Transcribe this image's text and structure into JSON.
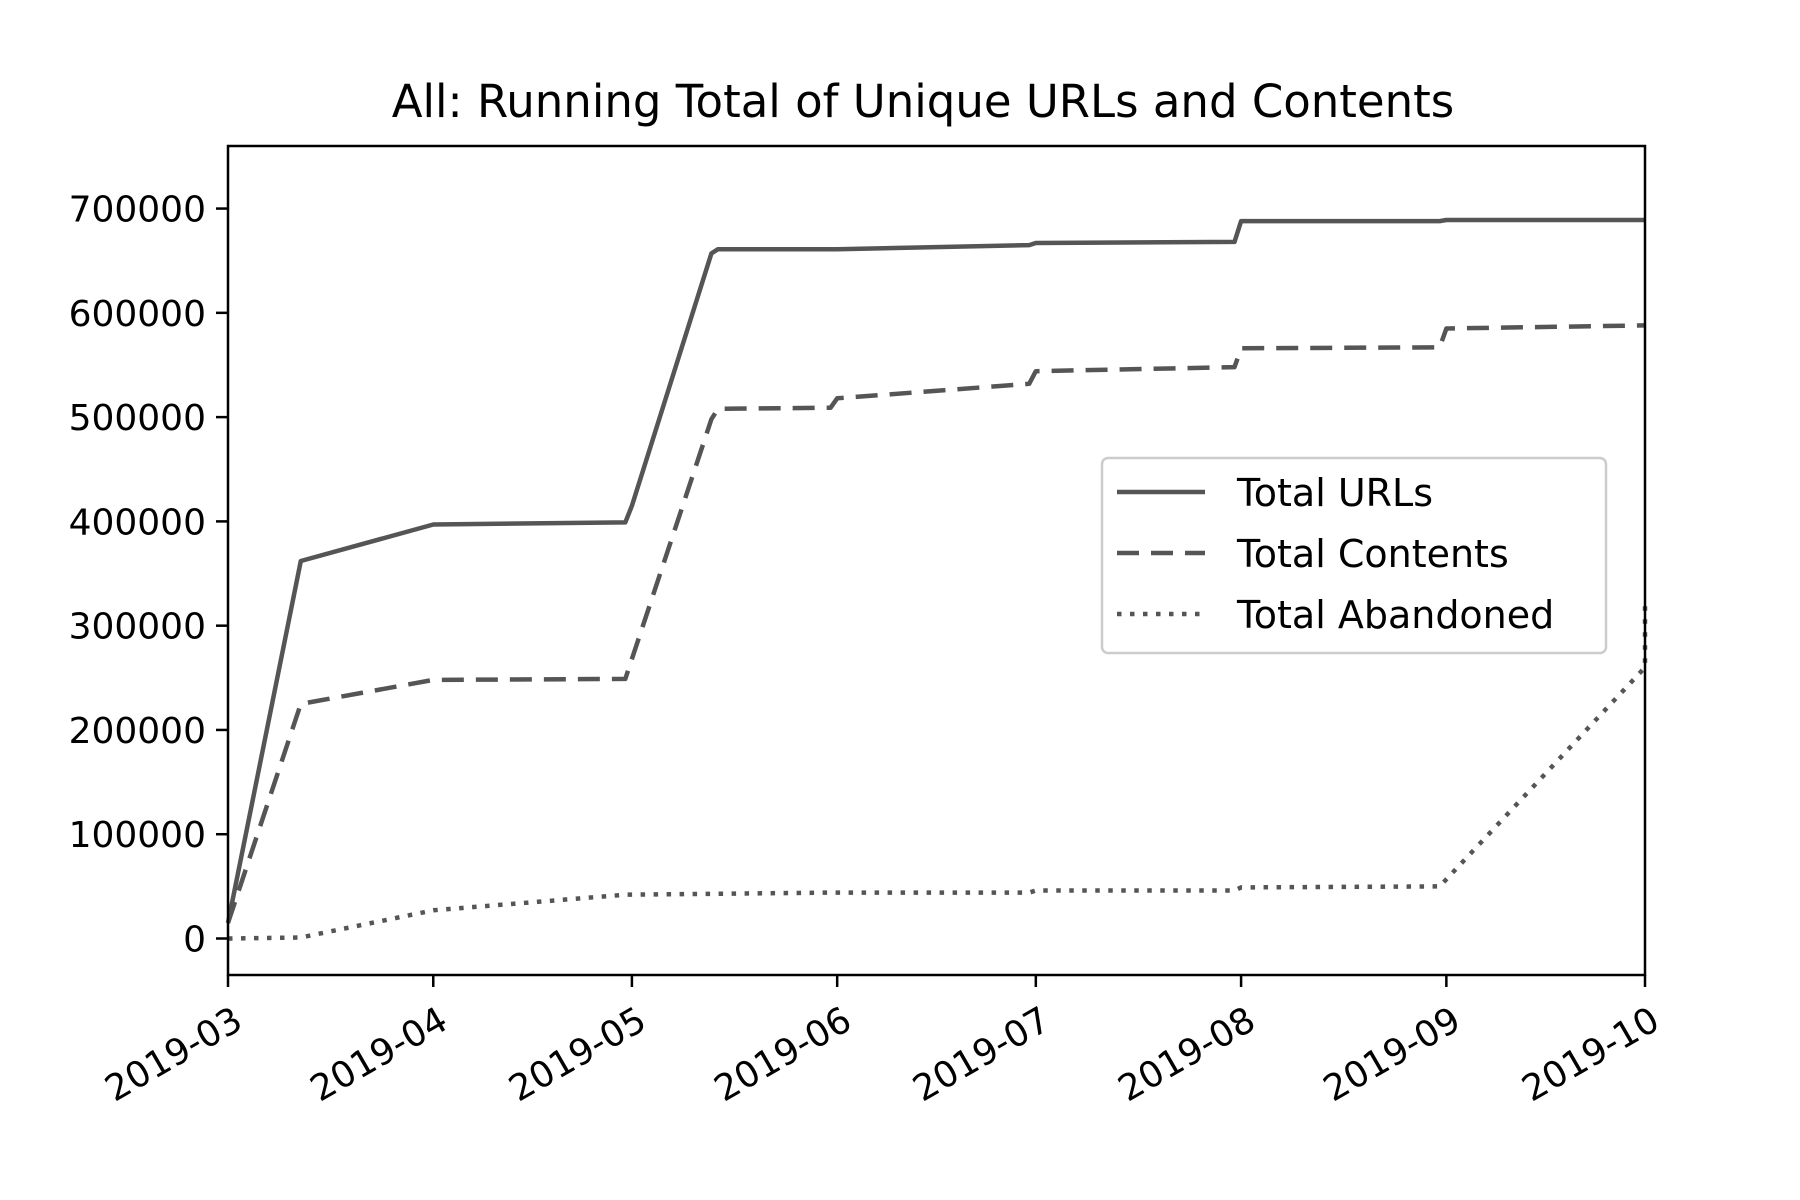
{
  "chart_data": {
    "type": "line",
    "title": "All: Running Total of Unique URLs and Contents",
    "xlabel": "",
    "ylabel": "",
    "x_axis": {
      "type": "date",
      "range": [
        "2019-03-01",
        "2019-10-01"
      ],
      "ticks": [
        "2019-03",
        "2019-04",
        "2019-05",
        "2019-06",
        "2019-07",
        "2019-08",
        "2019-09",
        "2019-10"
      ]
    },
    "y_axis": {
      "range": [
        -35000,
        760000
      ],
      "ticks": [
        "0",
        "100000",
        "200000",
        "300000",
        "400000",
        "500000",
        "600000",
        "700000"
      ]
    },
    "grid": false,
    "legend": {
      "placement": "center-right"
    },
    "series": [
      {
        "name": "Total URLs",
        "style": "solid",
        "color": "#555555",
        "points": [
          [
            "2019-03-01",
            15000
          ],
          [
            "2019-03-12",
            362000
          ],
          [
            "2019-04-01",
            397000
          ],
          [
            "2019-04-30",
            399000
          ],
          [
            "2019-05-01",
            415000
          ],
          [
            "2019-05-13",
            657000
          ],
          [
            "2019-05-14",
            661000
          ],
          [
            "2019-06-01",
            661000
          ],
          [
            "2019-06-30",
            665000
          ],
          [
            "2019-07-01",
            667000
          ],
          [
            "2019-07-31",
            668000
          ],
          [
            "2019-08-01",
            688000
          ],
          [
            "2019-08-31",
            688000
          ],
          [
            "2019-09-01",
            689000
          ],
          [
            "2019-10-01",
            689000
          ]
        ]
      },
      {
        "name": "Total Contents",
        "style": "dashed",
        "color": "#555555",
        "points": [
          [
            "2019-03-01",
            15000
          ],
          [
            "2019-03-12",
            225000
          ],
          [
            "2019-04-01",
            248000
          ],
          [
            "2019-04-30",
            249000
          ],
          [
            "2019-05-13",
            498000
          ],
          [
            "2019-05-14",
            508000
          ],
          [
            "2019-05-31",
            509000
          ],
          [
            "2019-06-01",
            518000
          ],
          [
            "2019-06-30",
            532000
          ],
          [
            "2019-07-01",
            544000
          ],
          [
            "2019-07-31",
            548000
          ],
          [
            "2019-08-01",
            566000
          ],
          [
            "2019-08-31",
            567000
          ],
          [
            "2019-09-01",
            585000
          ],
          [
            "2019-10-01",
            588000
          ]
        ]
      },
      {
        "name": "Total Abandoned",
        "style": "dotted",
        "color": "#555555",
        "points": [
          [
            "2019-03-01",
            0
          ],
          [
            "2019-03-12",
            1000
          ],
          [
            "2019-04-01",
            27000
          ],
          [
            "2019-04-30",
            42000
          ],
          [
            "2019-05-31",
            44000
          ],
          [
            "2019-06-30",
            44000
          ],
          [
            "2019-07-01",
            46000
          ],
          [
            "2019-07-31",
            46000
          ],
          [
            "2019-08-01",
            49000
          ],
          [
            "2019-08-31",
            50000
          ],
          [
            "2019-10-01",
            260000
          ],
          [
            "2019-10-01",
            320000
          ]
        ]
      }
    ]
  }
}
